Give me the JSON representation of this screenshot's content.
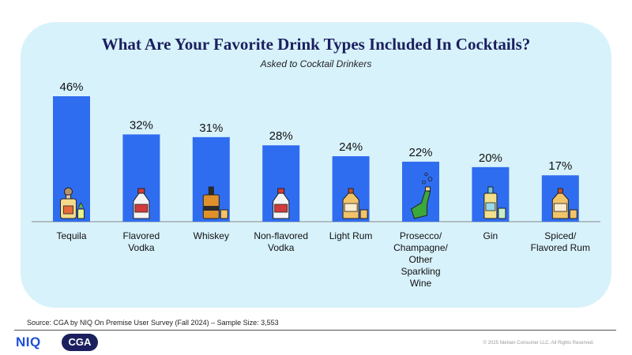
{
  "chart_data": {
    "type": "bar",
    "title": "What Are Your Favorite Drink Types Included In Cocktails?",
    "subtitle": "Asked to Cocktail Drinkers",
    "categories": [
      "Tequila",
      "Flavored Vodka",
      "Whiskey",
      "Non-flavored Vodka",
      "Light Rum",
      "Prosecco/ Champagne/ Other Sparkling Wine",
      "Gin",
      "Spiced/ Flavored Rum"
    ],
    "category_lines": [
      [
        "Tequila"
      ],
      [
        "Flavored",
        "Vodka"
      ],
      [
        "Whiskey"
      ],
      [
        "Non-flavored",
        "Vodka"
      ],
      [
        "Light Rum"
      ],
      [
        "Prosecco/",
        "Champagne/",
        "Other",
        "Sparkling",
        "Wine"
      ],
      [
        "Gin"
      ],
      [
        "Spiced/",
        "Flavored Rum"
      ]
    ],
    "values": [
      46,
      32,
      31,
      28,
      24,
      22,
      20,
      17
    ],
    "value_labels": [
      "46%",
      "32%",
      "31%",
      "28%",
      "24%",
      "22%",
      "20%",
      "17%"
    ],
    "icons": [
      "tequila-bottle-icon",
      "vodka-bottle-icon",
      "whiskey-bottle-icon",
      "vodka-bottle-icon",
      "rum-bottle-icon",
      "champagne-bottle-icon",
      "gin-bottle-icon",
      "rum-bottle-icon"
    ],
    "ylim": [
      0,
      50
    ],
    "grid": false,
    "bar_color": "#2f6df0"
  },
  "footer": {
    "source": "Source: CGA by NIQ On Premise User Survey (Fall 2024) – Sample Size: 3,553",
    "copyright": "© 2025 Nielsen Consumer LLC. All Rights Reserved.",
    "logo_niq": "NIQ",
    "logo_cga": "CGA"
  },
  "colors": {
    "panel": "#d7f2fb",
    "title": "#1b1f5e",
    "niq": "#1f4fd8"
  }
}
